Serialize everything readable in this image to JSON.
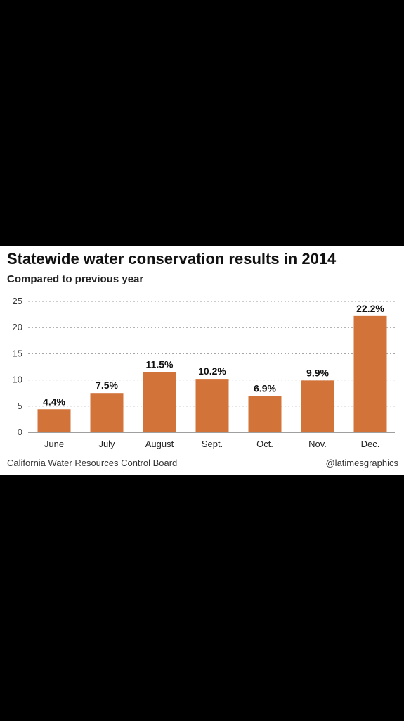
{
  "chart_data": {
    "type": "bar",
    "title": "Statewide water conservation results in 2014",
    "subtitle": "Compared to previous year",
    "categories": [
      "June",
      "July",
      "August",
      "Sept.",
      "Oct.",
      "Nov.",
      "Dec."
    ],
    "values": [
      4.4,
      7.5,
      11.5,
      10.2,
      6.9,
      9.9,
      22.2
    ],
    "data_labels": [
      "4.4%",
      "7.5%",
      "11.5%",
      "10.2%",
      "6.9%",
      "9.9%",
      "22.2%"
    ],
    "yticks": [
      "0",
      "5",
      "10",
      "15",
      "20",
      "25"
    ],
    "ylim": [
      0,
      25
    ],
    "grid": true,
    "legend": "none",
    "bar_color": "#d2733a",
    "xlabel": "",
    "ylabel": ""
  },
  "footer": {
    "source": "California Water Resources Control Board",
    "credit": "@latimesgraphics"
  },
  "colors": {
    "background": "#000000",
    "panel": "#ffffff",
    "text": "#111111",
    "grid": "#9a9a9a"
  }
}
